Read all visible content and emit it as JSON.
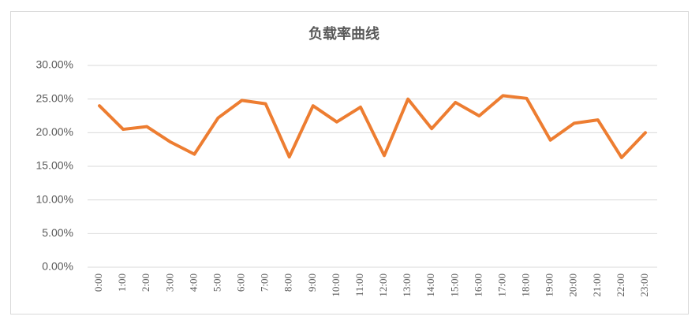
{
  "chart_data": {
    "type": "line",
    "title": "负载率曲线",
    "categories": [
      "0:00",
      "1:00",
      "2:00",
      "3:00",
      "4:00",
      "5:00",
      "6:00",
      "7:00",
      "8:00",
      "9:00",
      "10:00",
      "11:00",
      "12:00",
      "13:00",
      "14:00",
      "15:00",
      "16:00",
      "17:00",
      "18:00",
      "19:00",
      "20:00",
      "21:00",
      "22:00",
      "23:00"
    ],
    "series": [
      {
        "name": "负载率",
        "color": "#ED7D31",
        "values": [
          24.0,
          20.5,
          20.9,
          18.6,
          16.8,
          22.2,
          24.8,
          24.3,
          16.4,
          24.0,
          21.6,
          23.8,
          16.6,
          25.0,
          20.6,
          24.5,
          22.5,
          25.5,
          25.1,
          18.9,
          21.4,
          21.9,
          16.3,
          20.0
        ]
      }
    ],
    "ylim": [
      0,
      30
    ],
    "yticks": [
      {
        "value": 0,
        "label": "0.00%"
      },
      {
        "value": 5,
        "label": "5.00%"
      },
      {
        "value": 10,
        "label": "10.00%"
      },
      {
        "value": 15,
        "label": "15.00%"
      },
      {
        "value": 20,
        "label": "20.00%"
      },
      {
        "value": 25,
        "label": "25.00%"
      },
      {
        "value": 30,
        "label": "30.00%"
      }
    ],
    "grid": true
  }
}
